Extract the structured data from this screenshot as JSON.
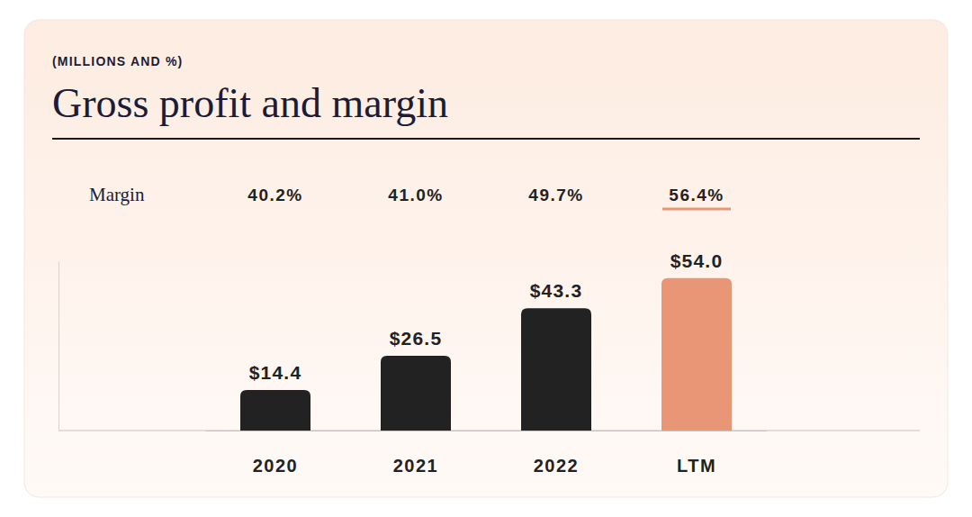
{
  "chart_data": {
    "type": "bar",
    "title": "Gross profit and margin",
    "subtitle": "(MILLIONS AND %)",
    "categories": [
      "2020",
      "2021",
      "2022",
      "LTM"
    ],
    "values": [
      14.4,
      26.5,
      43.3,
      54.0
    ],
    "value_labels": [
      "$14.4",
      "$26.5",
      "$43.3",
      "$54.0"
    ],
    "margin_label": "Margin",
    "margin": [
      40.2,
      41.0,
      49.7,
      56.4
    ],
    "margin_labels": [
      "40.2%",
      "41.0%",
      "49.7%",
      "56.4%"
    ],
    "colors": [
      "#222222",
      "#222222",
      "#222222",
      "#e99677"
    ],
    "ylim": [
      0,
      60
    ],
    "yticks": [],
    "data_labels": true,
    "tick_labels": "x",
    "grid": false
  }
}
